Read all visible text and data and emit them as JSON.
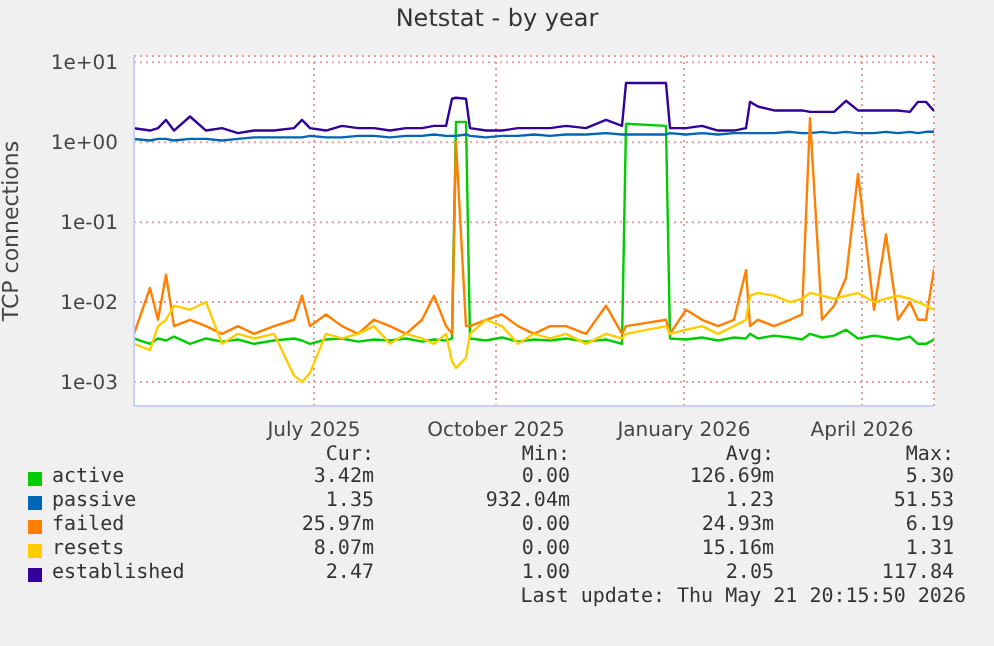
{
  "chart_data": {
    "type": "line",
    "title": "Netstat - by year",
    "ylabel": "TCP connections",
    "x": [
      "2025-04-16",
      "2025-04-24",
      "2025-04-28",
      "2025-05-02",
      "2025-05-06",
      "2025-05-14",
      "2025-05-22",
      "2025-05-30",
      "2025-06-07",
      "2025-06-15",
      "2025-06-25",
      "2025-07-05",
      "2025-07-09",
      "2025-07-13",
      "2025-07-21",
      "2025-07-29",
      "2025-08-06",
      "2025-08-14",
      "2025-08-22",
      "2025-08-30",
      "2025-09-07",
      "2025-09-13",
      "2025-09-19",
      "2025-09-22",
      "2025-09-24",
      "2025-09-29",
      "2025-10-01",
      "2025-10-09",
      "2025-10-17",
      "2025-10-25",
      "2025-11-02",
      "2025-11-10",
      "2025-11-18",
      "2025-11-28",
      "2025-12-08",
      "2025-12-16",
      "2025-12-18",
      "2026-01-07",
      "2026-01-09",
      "2026-01-17",
      "2026-01-25",
      "2026-02-02",
      "2026-02-10",
      "2026-02-16",
      "2026-02-18",
      "2026-02-22",
      "2026-03-02",
      "2026-03-10",
      "2026-03-16",
      "2026-03-20",
      "2026-03-26",
      "2026-04-01",
      "2026-04-07",
      "2026-04-13",
      "2026-04-21",
      "2026-04-27",
      "2026-05-03",
      "2026-05-09",
      "2026-05-13",
      "2026-05-17",
      "2026-05-21"
    ],
    "series": [
      {
        "name": "active",
        "color": "#00cc00",
        "values": [
          0.0035,
          0.003,
          0.0035,
          0.0033,
          0.0037,
          0.003,
          0.0035,
          0.0032,
          0.0034,
          0.003,
          0.0033,
          0.0035,
          0.0033,
          0.003,
          0.0034,
          0.0035,
          0.0032,
          0.0034,
          0.0033,
          0.0035,
          0.0032,
          0.0034,
          0.0033,
          0.0035,
          1.8,
          1.8,
          0.0035,
          0.0033,
          0.0036,
          0.0032,
          0.0034,
          0.0033,
          0.0035,
          0.0032,
          0.0034,
          0.003,
          1.7,
          1.6,
          0.0035,
          0.0034,
          0.0036,
          0.0033,
          0.0036,
          0.0035,
          0.004,
          0.0035,
          0.0038,
          0.0036,
          0.0034,
          0.004,
          0.0036,
          0.0038,
          0.0045,
          0.0035,
          0.0038,
          0.0036,
          0.0034,
          0.0037,
          0.003,
          0.003,
          0.0034
        ]
      },
      {
        "name": "passive",
        "color": "#0066b3",
        "values": [
          1.1,
          1.05,
          1.1,
          1.1,
          1.05,
          1.1,
          1.1,
          1.05,
          1.1,
          1.15,
          1.15,
          1.15,
          1.15,
          1.2,
          1.15,
          1.15,
          1.2,
          1.2,
          1.15,
          1.2,
          1.2,
          1.25,
          1.2,
          1.2,
          1.2,
          1.25,
          1.2,
          1.15,
          1.2,
          1.2,
          1.25,
          1.2,
          1.25,
          1.25,
          1.3,
          1.25,
          1.25,
          1.25,
          1.3,
          1.25,
          1.3,
          1.25,
          1.3,
          1.3,
          1.3,
          1.3,
          1.3,
          1.35,
          1.3,
          1.3,
          1.35,
          1.3,
          1.35,
          1.3,
          1.3,
          1.35,
          1.3,
          1.35,
          1.3,
          1.35,
          1.35
        ]
      },
      {
        "name": "failed",
        "color": "#ff8000",
        "values": [
          0.004,
          0.015,
          0.006,
          0.022,
          0.005,
          0.006,
          0.005,
          0.004,
          0.005,
          0.004,
          0.005,
          0.006,
          0.012,
          0.005,
          0.007,
          0.005,
          0.004,
          0.006,
          0.005,
          0.004,
          0.006,
          0.012,
          0.005,
          0.004,
          1.0,
          0.005,
          0.005,
          0.006,
          0.007,
          0.005,
          0.004,
          0.005,
          0.005,
          0.004,
          0.009,
          0.004,
          0.005,
          0.006,
          0.004,
          0.008,
          0.006,
          0.005,
          0.006,
          0.025,
          0.005,
          0.006,
          0.005,
          0.006,
          0.007,
          2.0,
          0.006,
          0.009,
          0.02,
          0.4,
          0.008,
          0.07,
          0.006,
          0.01,
          0.006,
          0.006,
          0.026
        ]
      },
      {
        "name": "resets",
        "color": "#ffcc00",
        "values": [
          0.003,
          0.0025,
          0.005,
          0.006,
          0.009,
          0.008,
          0.01,
          0.003,
          0.004,
          0.0035,
          0.004,
          0.0012,
          0.001,
          0.0013,
          0.004,
          0.0035,
          0.004,
          0.005,
          0.003,
          0.004,
          0.0035,
          0.003,
          0.004,
          0.0018,
          0.0015,
          0.002,
          0.004,
          0.006,
          0.005,
          0.003,
          0.004,
          0.0035,
          0.004,
          0.003,
          0.004,
          0.0035,
          0.004,
          0.005,
          0.004,
          0.0045,
          0.005,
          0.004,
          0.005,
          0.006,
          0.012,
          0.013,
          0.012,
          0.01,
          0.011,
          0.013,
          0.012,
          0.011,
          0.012,
          0.013,
          0.01,
          0.011,
          0.012,
          0.011,
          0.01,
          0.009,
          0.008
        ]
      },
      {
        "name": "established",
        "color": "#330099",
        "values": [
          1.5,
          1.4,
          1.5,
          1.9,
          1.4,
          2.1,
          1.4,
          1.5,
          1.3,
          1.4,
          1.4,
          1.5,
          1.9,
          1.5,
          1.4,
          1.6,
          1.5,
          1.5,
          1.4,
          1.5,
          1.5,
          1.6,
          1.6,
          3.5,
          3.6,
          3.5,
          1.5,
          1.4,
          1.4,
          1.5,
          1.5,
          1.5,
          1.6,
          1.5,
          1.9,
          1.6,
          5.5,
          5.5,
          1.5,
          1.5,
          1.6,
          1.4,
          1.4,
          1.5,
          3.2,
          2.8,
          2.5,
          2.5,
          2.5,
          2.4,
          2.4,
          2.4,
          3.3,
          2.5,
          2.5,
          2.5,
          2.5,
          2.4,
          3.2,
          3.2,
          2.47
        ]
      }
    ],
    "xlim": [
      "2025-04-16",
      "2026-05-21"
    ],
    "xticks": [
      {
        "value": "2025-07-15",
        "label": "July 2025"
      },
      {
        "value": "2025-10-14",
        "label": "October 2025"
      },
      {
        "value": "2026-01-16",
        "label": "January 2026"
      },
      {
        "value": "2026-04-15",
        "label": "April 2026"
      }
    ],
    "ylim": [
      0.0005,
      12
    ],
    "yticks": [
      {
        "value": 0.001,
        "label": "1e-03"
      },
      {
        "value": 0.01,
        "label": "1e-02"
      },
      {
        "value": 0.1,
        "label": "1e-01"
      },
      {
        "value": 1,
        "label": "1e+00"
      },
      {
        "value": 10,
        "label": "1e+01"
      }
    ],
    "log": true,
    "grid": true,
    "legend": "bottom",
    "marker": "none",
    "line_style": "solid",
    "annotations": [
      "Cur:",
      "Min:",
      "Avg:",
      "Max:",
      "3.42m",
      "0.00",
      "126.69m",
      "5.30",
      "1.35",
      "932.04m",
      "1.23",
      "51.53",
      "25.97m",
      "0.00",
      "24.93m",
      "6.19",
      "8.07m",
      "0.00",
      "15.16m",
      "1.31",
      "2.47",
      "1.00",
      "2.05",
      "117.84",
      "Last update: Thu May 21 20:15:50 2026"
    ]
  }
}
